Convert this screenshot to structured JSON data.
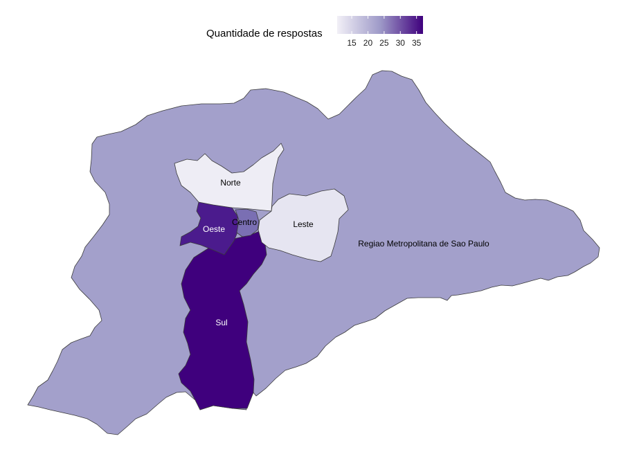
{
  "legend": {
    "title": "Quantidade de respostas",
    "min": 10.5,
    "max": 37,
    "ticks": [
      15,
      20,
      25,
      30,
      35
    ],
    "color_low": "#f2f0f7",
    "color_high": "#3f007d"
  },
  "regions": [
    {
      "key": "rmsp",
      "label": "Regiao Metropolitana de Sao Paulo",
      "value": 24,
      "fill": "#a3a0cb",
      "label_color": "#000000"
    },
    {
      "key": "norte",
      "label": "Norte",
      "value": 12,
      "fill": "#eeedf5",
      "label_color": "#000000"
    },
    {
      "key": "leste",
      "label": "Leste",
      "value": 13,
      "fill": "#e6e5f1",
      "label_color": "#000000"
    },
    {
      "key": "centro",
      "label": "Centro",
      "value": 27,
      "fill": "#7a6fb3",
      "label_color": "#000000"
    },
    {
      "key": "oeste",
      "label": "Oeste",
      "value": 33,
      "fill": "#4b1b8d",
      "label_color": "#ffffff"
    },
    {
      "key": "sul",
      "label": "Sul",
      "value": 37,
      "fill": "#3f007d",
      "label_color": "#ffffff"
    }
  ]
}
